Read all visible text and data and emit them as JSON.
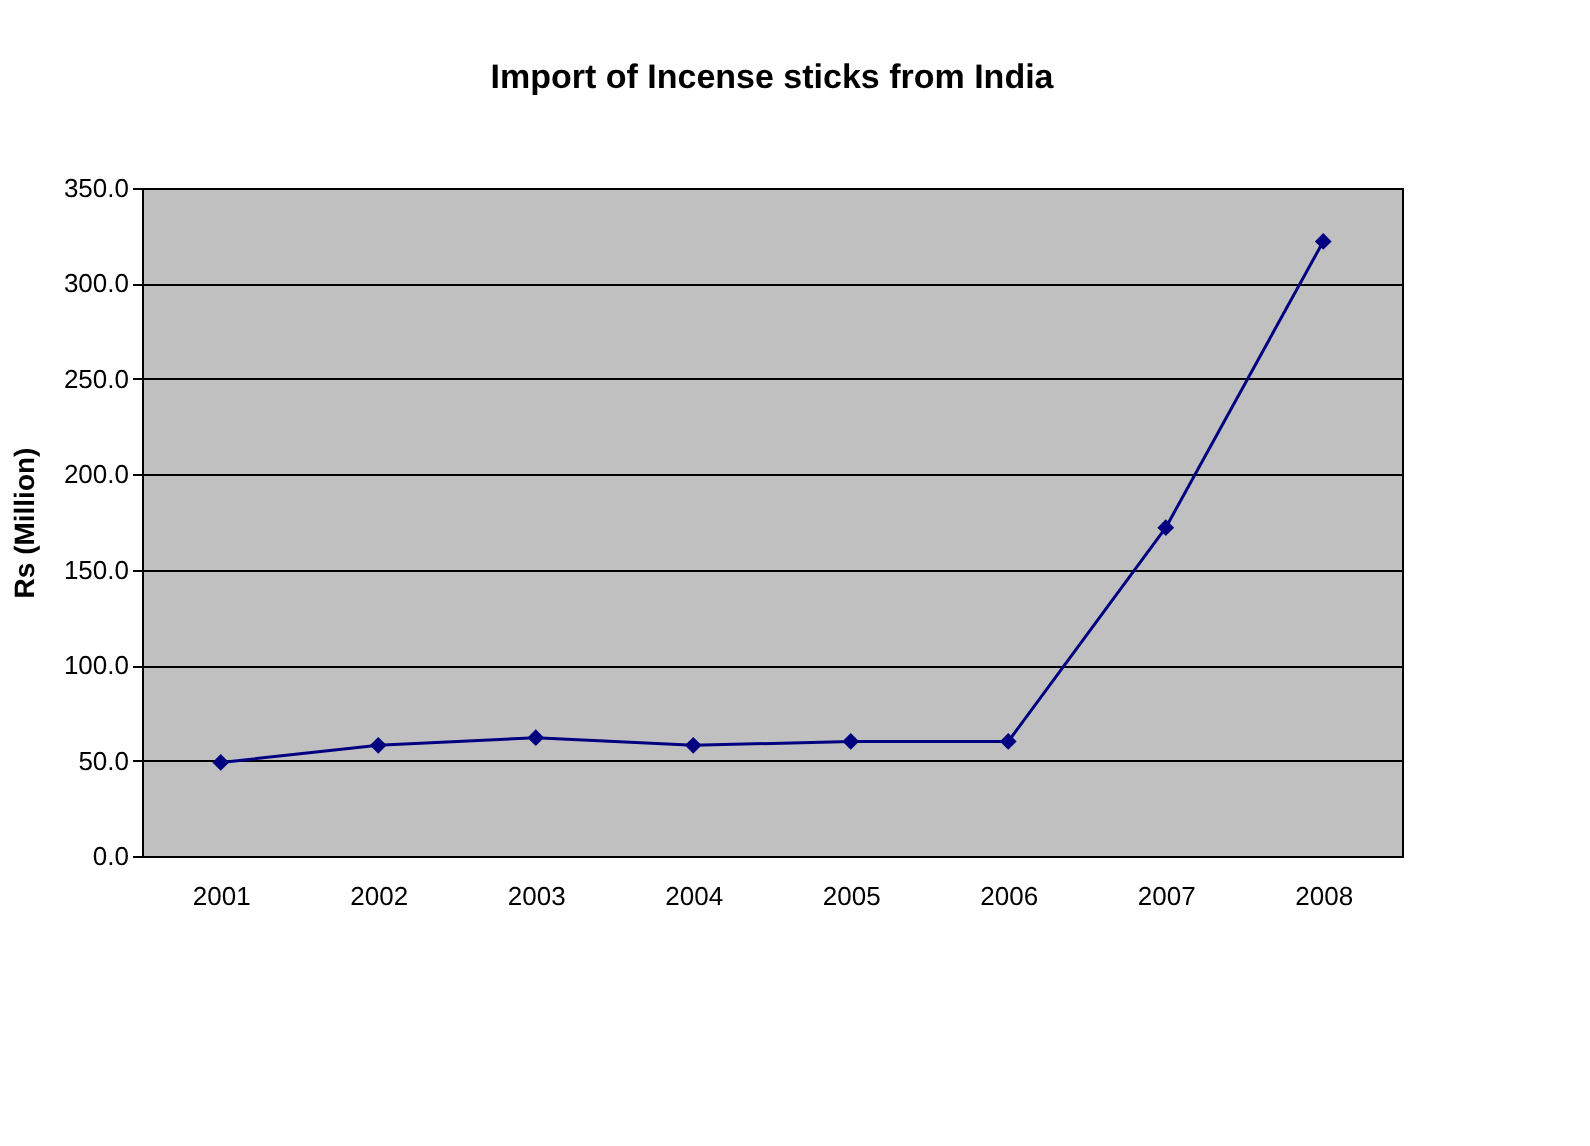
{
  "chart_data": {
    "type": "line",
    "title": "Import of Incense sticks from India",
    "ylabel": "Rs (Million)",
    "categories": [
      "2001",
      "2002",
      "2003",
      "2004",
      "2005",
      "2006",
      "2007",
      "2008"
    ],
    "series": [
      {
        "color": "#000080",
        "values": [
          49,
          58,
          62,
          58,
          60,
          60,
          172,
          322
        ]
      }
    ],
    "ylim": [
      0,
      350
    ],
    "yticks": [
      {
        "value": 0,
        "label": "0.0"
      },
      {
        "value": 50,
        "label": "50.0"
      },
      {
        "value": 100,
        "label": "100.0"
      },
      {
        "value": 150,
        "label": "150.0"
      },
      {
        "value": 200,
        "label": "200.0"
      },
      {
        "value": 250,
        "label": "250.0"
      },
      {
        "value": 300,
        "label": "300.0"
      },
      {
        "value": 350,
        "label": "350.0"
      }
    ],
    "grid": "y",
    "marker": "diamond",
    "line_style": "solid",
    "legend": false
  }
}
